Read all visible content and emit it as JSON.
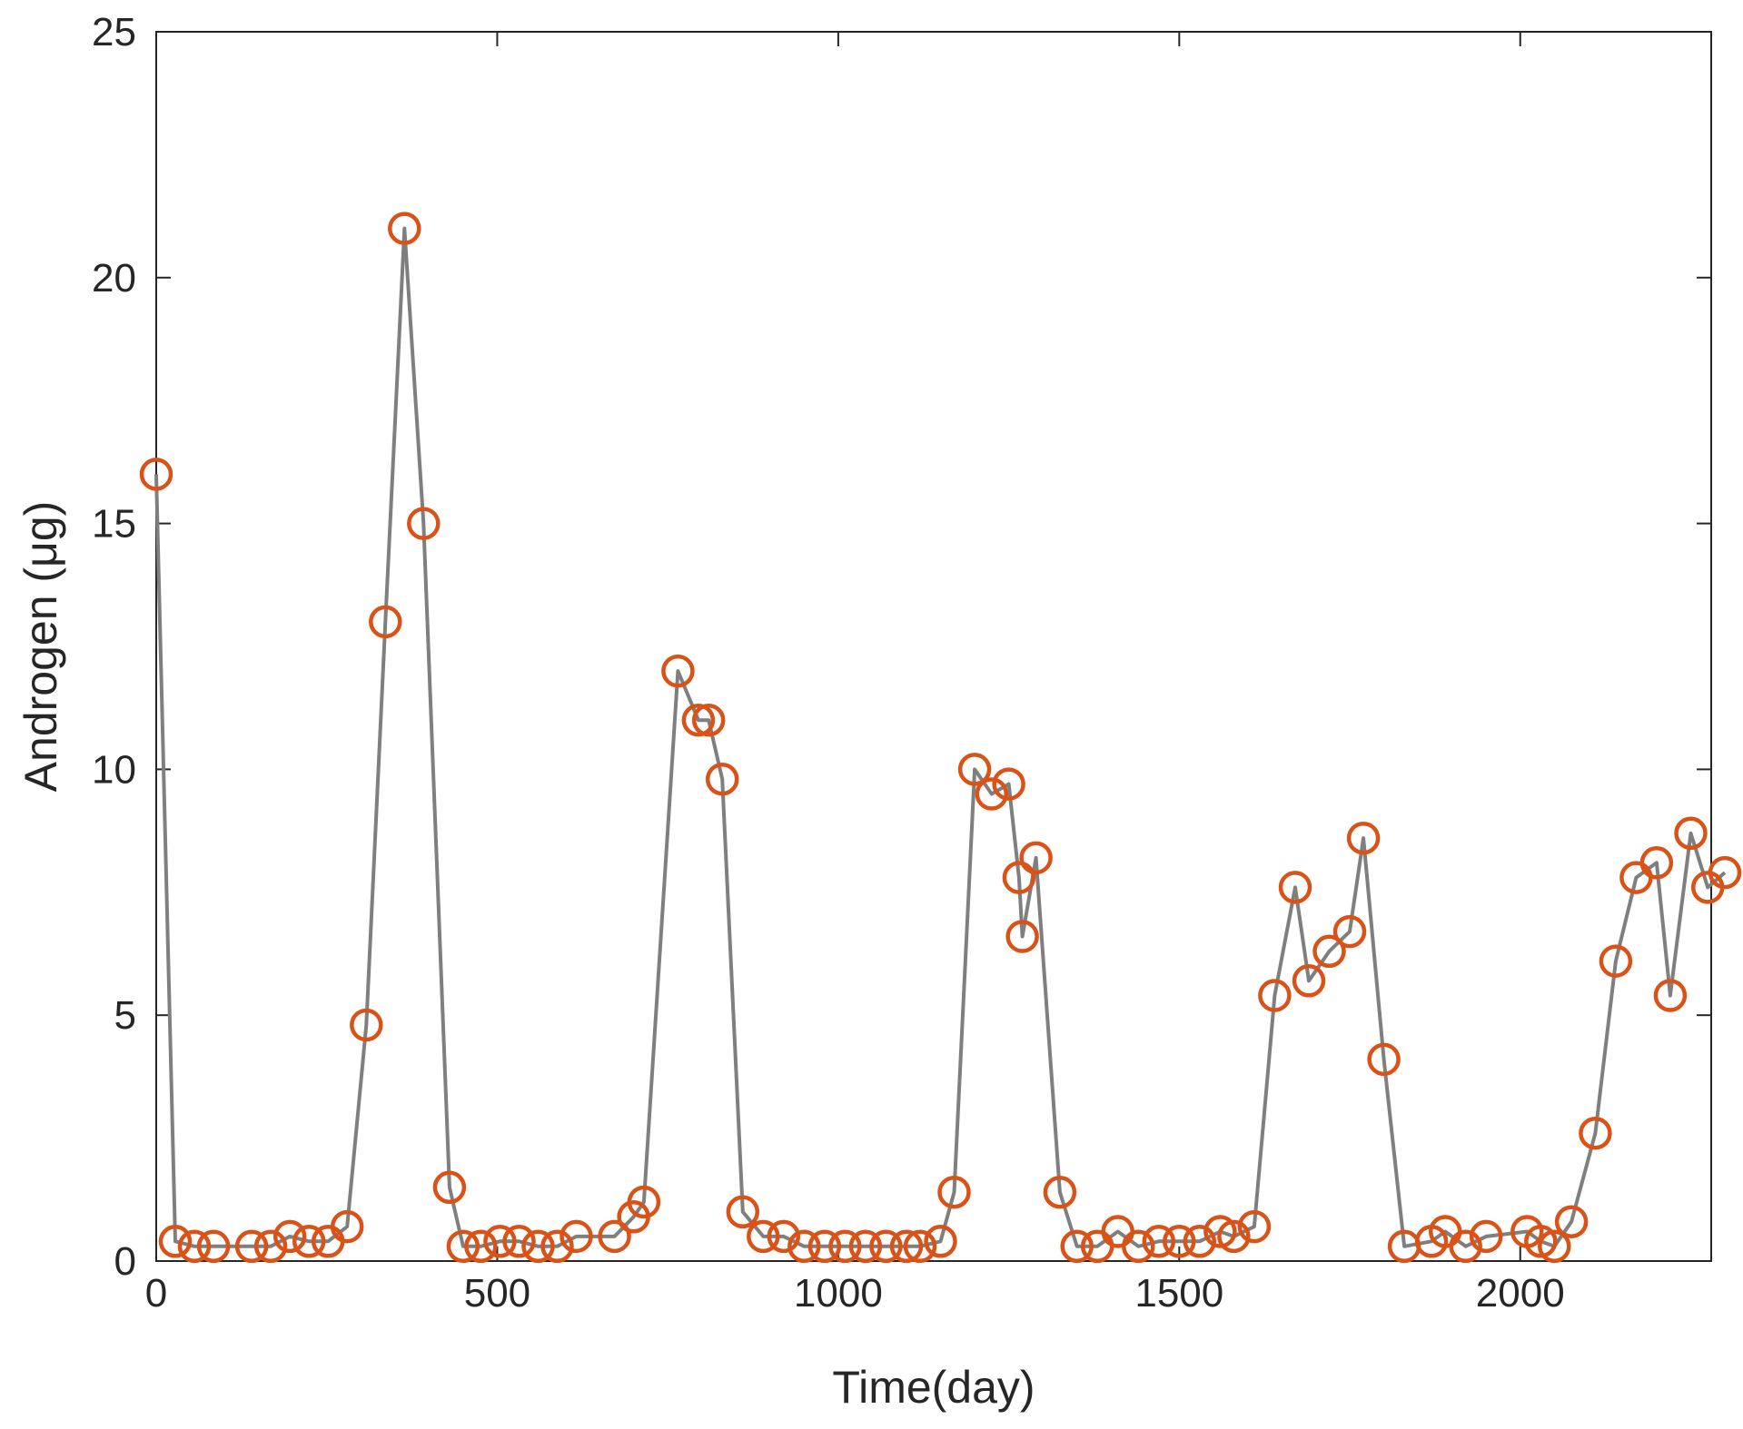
{
  "chart_data": {
    "type": "line",
    "title": "",
    "xlabel": "Time(day)",
    "ylabel": "Androgen (μg)",
    "xlim": [
      0,
      2280
    ],
    "ylim": [
      0,
      25
    ],
    "xticks": [
      0,
      500,
      1000,
      1500,
      2000
    ],
    "yticks": [
      0,
      5,
      10,
      15,
      20,
      25
    ],
    "grid": false,
    "legend": "none",
    "line_color": "#7f7f7f",
    "marker": "circle",
    "marker_color": "#d95319",
    "series": [
      {
        "x": [
          0,
          28,
          56,
          84,
          140,
          168,
          196,
          224,
          252,
          280,
          308,
          336,
          364,
          392,
          430,
          450,
          476,
          504,
          532,
          560,
          588,
          616,
          672,
          700,
          715,
          765,
          795,
          810,
          830,
          860,
          890,
          920,
          950,
          980,
          1010,
          1040,
          1070,
          1100,
          1120,
          1150,
          1170,
          1200,
          1225,
          1250,
          1265,
          1270,
          1290,
          1325,
          1350,
          1380,
          1410,
          1440,
          1470,
          1500,
          1530,
          1560,
          1580,
          1610,
          1640,
          1670,
          1690,
          1720,
          1750,
          1770,
          1800,
          1830,
          1870,
          1890,
          1920,
          1950,
          2010,
          2030,
          2050,
          2075,
          2110,
          2140,
          2170,
          2200,
          2220,
          2250,
          2275,
          2300
        ],
        "y": [
          16.0,
          0.4,
          0.3,
          0.3,
          0.3,
          0.3,
          0.5,
          0.4,
          0.4,
          0.7,
          4.8,
          13.0,
          21.0,
          15.0,
          1.5,
          0.3,
          0.3,
          0.4,
          0.4,
          0.3,
          0.3,
          0.5,
          0.5,
          0.9,
          1.2,
          12.0,
          11.0,
          11.0,
          9.8,
          1.0,
          0.5,
          0.5,
          0.3,
          0.3,
          0.3,
          0.3,
          0.3,
          0.3,
          0.3,
          0.4,
          1.4,
          10.0,
          9.5,
          9.7,
          7.8,
          6.6,
          8.2,
          1.4,
          0.3,
          0.3,
          0.6,
          0.3,
          0.4,
          0.4,
          0.4,
          0.6,
          0.5,
          0.7,
          5.4,
          7.6,
          5.7,
          6.3,
          6.7,
          8.6,
          4.1,
          0.3,
          0.4,
          0.6,
          0.3,
          0.5,
          0.6,
          0.4,
          0.3,
          0.8,
          2.6,
          6.1,
          7.8,
          8.1,
          5.4,
          8.7,
          7.6,
          7.9
        ]
      }
    ]
  }
}
